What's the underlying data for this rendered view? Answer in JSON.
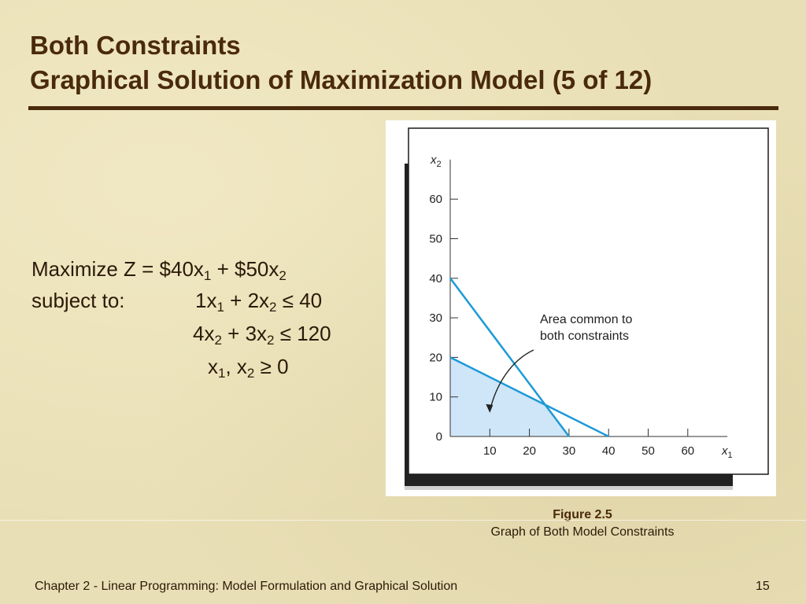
{
  "title": {
    "line1": "Both Constraints",
    "line2": "Graphical Solution of Maximization Model (5 of 12)"
  },
  "model": {
    "objective": "Maximize Z = $40x1 + $50x2",
    "label": "subject to:",
    "constraint1": "1x1 + 2x2 ≤ 40",
    "constraint2": "4x2 + 3x2 ≤ 120",
    "nonneg": "x1, x2 ≥ 0"
  },
  "chart_data": {
    "type": "line",
    "xlabel": "x1",
    "ylabel": "x2",
    "xlim": [
      0,
      70
    ],
    "ylim": [
      0,
      70
    ],
    "xticks": [
      10,
      20,
      30,
      40,
      50,
      60
    ],
    "yticks": [
      0,
      10,
      20,
      30,
      40,
      50,
      60
    ],
    "series": [
      {
        "values": [
          [
            0,
            40
          ],
          [
            30,
            0
          ]
        ]
      },
      {
        "values": [
          [
            0,
            20
          ],
          [
            40,
            0
          ]
        ]
      }
    ],
    "feasible_region": [
      [
        0,
        0
      ],
      [
        0,
        20
      ],
      [
        24,
        8
      ],
      [
        30,
        0
      ]
    ],
    "annotation": {
      "text": [
        "Area common to",
        "both constraints"
      ],
      "point": [
        10,
        6
      ]
    },
    "colors": {
      "line": "#1c9ad6",
      "region": "#cfe6f8",
      "frame": "#1a1a1a"
    }
  },
  "caption": {
    "figure": "Figure 2.5",
    "text": "Graph of Both Model Constraints"
  },
  "footer": {
    "text": "Chapter 2 - Linear Programming:  Model Formulation and Graphical Solution",
    "page": "15"
  }
}
